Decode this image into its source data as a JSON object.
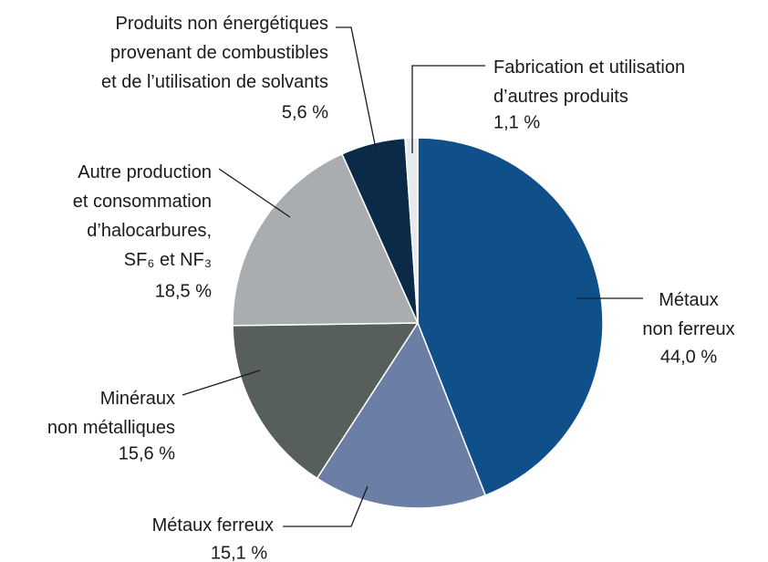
{
  "chart_data": {
    "type": "pie",
    "categories": [
      "Métaux\nnon ferreux",
      "Métaux ferreux",
      "Minéraux\nnon métalliques",
      "Autre production\net consommation\nd’halocarbures,\nSF₆ et NF₃",
      "Produits non énergétiques\nprovenant de combustibles\net de l’utilisation de solvants",
      "Fabrication et utilisation\nd’autres produits"
    ],
    "values": [
      44.0,
      15.1,
      15.6,
      18.5,
      5.6,
      1.1
    ],
    "value_labels": [
      "44,0 %",
      "15,1 %",
      "15,6 %",
      "18,5 %",
      "5,6 %",
      "1,1 %"
    ],
    "colors": [
      "#10508a",
      "#6b7fa6",
      "#575f5c",
      "#a9adaf",
      "#0b2a48",
      "#e6e9ee"
    ]
  }
}
